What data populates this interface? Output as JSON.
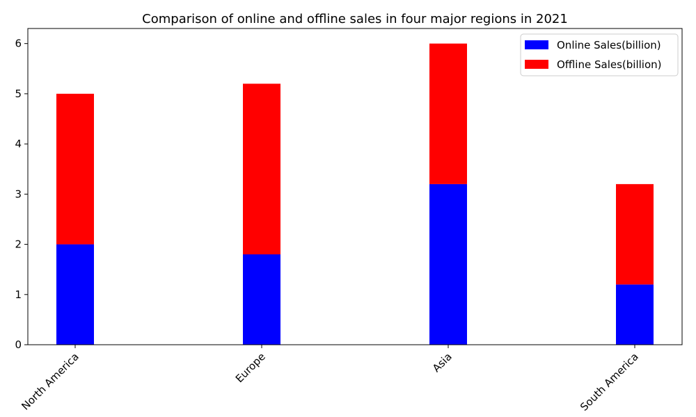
{
  "chart_data": {
    "type": "bar",
    "stacked": true,
    "title": "Comparison of online and offline sales in four major regions in 2021",
    "xlabel": "",
    "ylabel": "",
    "categories": [
      "North America",
      "Europe",
      "Asia",
      "South America"
    ],
    "series": [
      {
        "name": "Online Sales(billion)",
        "values": [
          2.0,
          1.8,
          3.2,
          1.2
        ],
        "color": "#0000ff"
      },
      {
        "name": "Offline Sales(billion)",
        "values": [
          3.0,
          3.4,
          2.8,
          2.0
        ],
        "color": "#ff0000"
      }
    ],
    "ylim": [
      0,
      6.3
    ],
    "yticks": [
      0,
      1,
      2,
      3,
      4,
      5,
      6
    ],
    "grid": false,
    "legend_position": "top-right"
  }
}
